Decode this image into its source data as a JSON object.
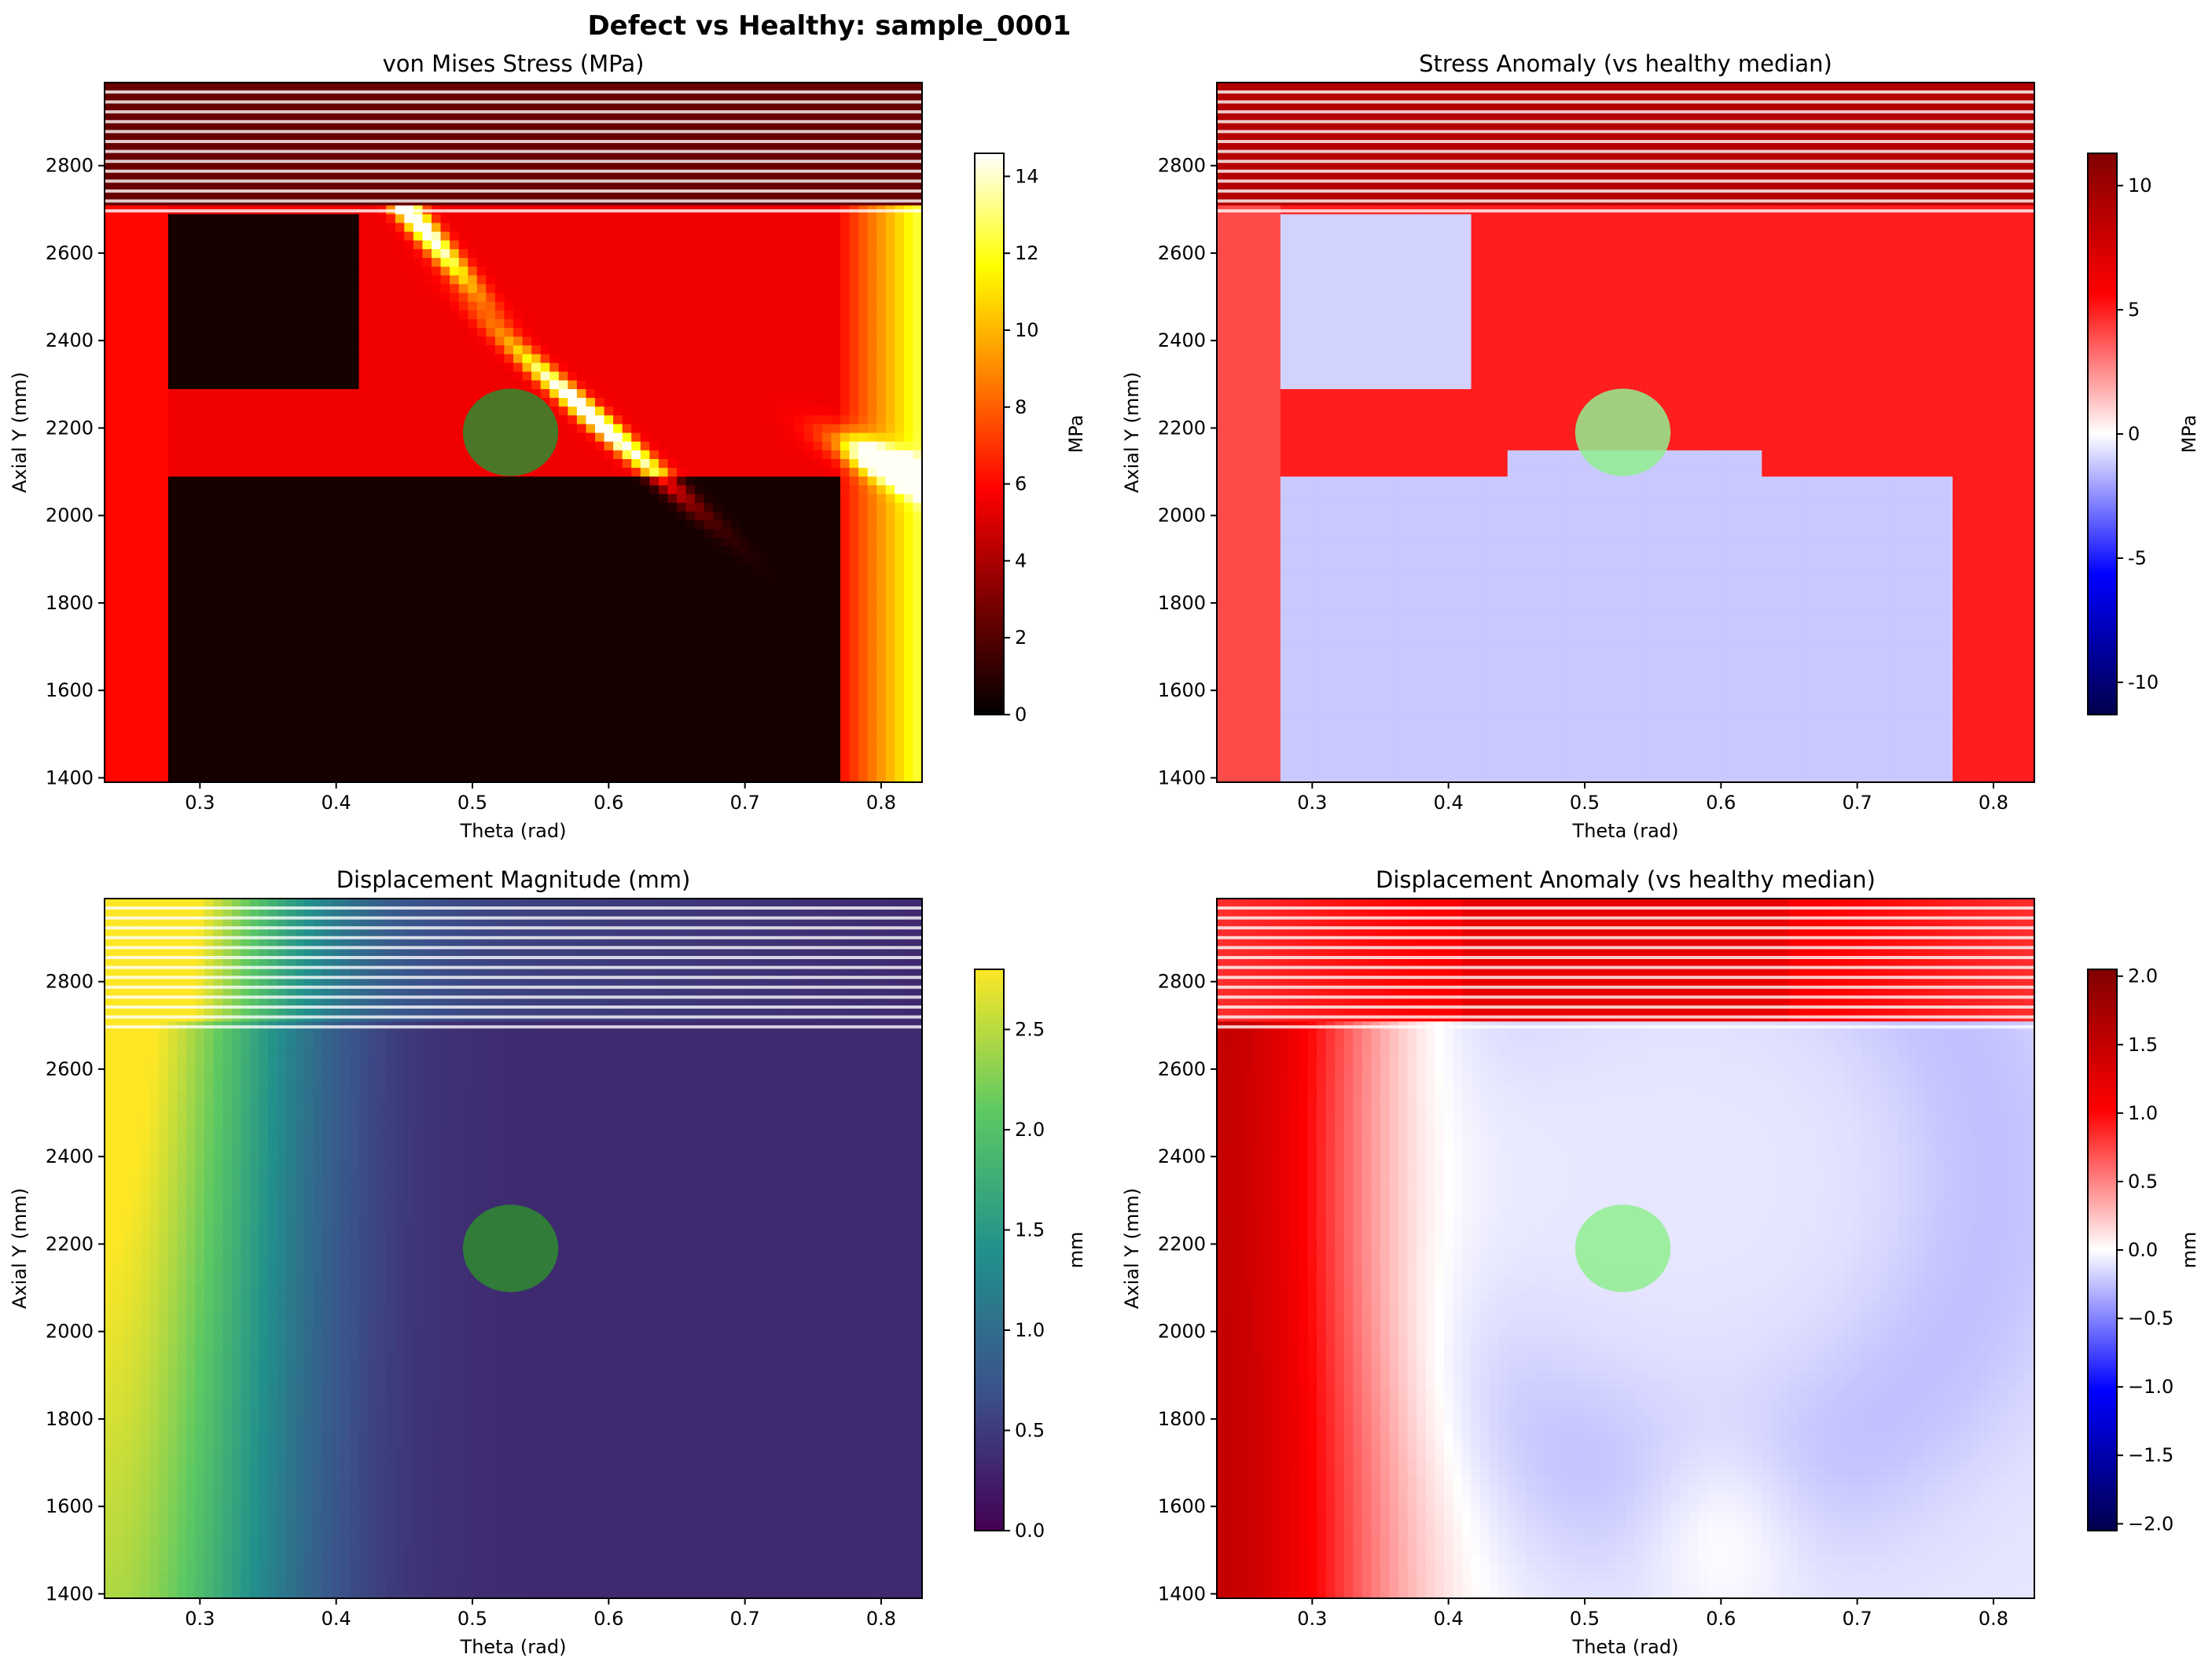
{
  "figure": {
    "suptitle": "Defect vs Healthy: sample_0001"
  },
  "chart_data": [
    {
      "id": "stress",
      "type": "heatmap",
      "title": "von Mises Stress (MPa)",
      "xlabel": "Theta (rad)",
      "ylabel": "Axial Y (mm)",
      "xlim": [
        0.23,
        0.83
      ],
      "ylim": [
        1390,
        2990
      ],
      "xticks": [
        0.3,
        0.4,
        0.5,
        0.6,
        0.7,
        0.8
      ],
      "yticks": [
        1400,
        1600,
        1800,
        2000,
        2200,
        2400,
        2600,
        2800
      ],
      "colormap": "hot",
      "colormap_stops": [
        "#000000",
        "#7a0000",
        "#ff0000",
        "#ff8000",
        "#ffff00",
        "#ffffff"
      ],
      "colorbar": {
        "label": "MPa",
        "range": [
          0,
          14.6
        ],
        "ticks": [
          0,
          2,
          4,
          6,
          8,
          10,
          12,
          14
        ]
      },
      "defect_marker": {
        "theta": 0.528,
        "y": 2190,
        "color": "#2e8b2e"
      }
    },
    {
      "id": "stress_anomaly",
      "type": "heatmap",
      "title": "Stress Anomaly (vs healthy median)",
      "xlabel": "Theta (rad)",
      "ylabel": "Axial Y (mm)",
      "xlim": [
        0.23,
        0.83
      ],
      "ylim": [
        1390,
        2990
      ],
      "xticks": [
        0.3,
        0.4,
        0.5,
        0.6,
        0.7,
        0.8
      ],
      "yticks": [
        1400,
        1600,
        1800,
        2000,
        2200,
        2400,
        2600,
        2800
      ],
      "colormap": "seismic",
      "colormap_stops": [
        "#00004c",
        "#0000ff",
        "#ffffff",
        "#ff0000",
        "#800000"
      ],
      "colorbar": {
        "label": "MPa",
        "range": [
          -11.3,
          11.3
        ],
        "ticks": [
          -10,
          -5,
          0,
          5,
          10
        ]
      },
      "defect_marker": {
        "theta": 0.528,
        "y": 2190,
        "color": "#90ee90"
      }
    },
    {
      "id": "displacement",
      "type": "heatmap",
      "title": "Displacement Magnitude (mm)",
      "xlabel": "Theta (rad)",
      "ylabel": "Axial Y (mm)",
      "xlim": [
        0.23,
        0.83
      ],
      "ylim": [
        1390,
        2990
      ],
      "xticks": [
        0.3,
        0.4,
        0.5,
        0.6,
        0.7,
        0.8
      ],
      "yticks": [
        1400,
        1600,
        1800,
        2000,
        2200,
        2400,
        2600,
        2800
      ],
      "colormap": "viridis",
      "colormap_stops": [
        "#440154",
        "#3b528b",
        "#21918c",
        "#5ec962",
        "#fde725"
      ],
      "colorbar": {
        "label": "mm",
        "range": [
          0,
          2.8
        ],
        "ticks": [
          "0.0",
          "0.5",
          "1.0",
          "1.5",
          "2.0",
          "2.5"
        ]
      },
      "defect_marker": {
        "theta": 0.528,
        "y": 2190,
        "color": "#2e8b2e"
      }
    },
    {
      "id": "displacement_anomaly",
      "type": "heatmap",
      "title": "Displacement Anomaly (vs healthy median)",
      "xlabel": "Theta (rad)",
      "ylabel": "Axial Y (mm)",
      "xlim": [
        0.23,
        0.83
      ],
      "ylim": [
        1390,
        2990
      ],
      "xticks": [
        0.3,
        0.4,
        0.5,
        0.6,
        0.7,
        0.8
      ],
      "yticks": [
        1400,
        1600,
        1800,
        2000,
        2200,
        2400,
        2600,
        2800
      ],
      "colormap": "seismic",
      "colormap_stops": [
        "#00004c",
        "#0000ff",
        "#ffffff",
        "#ff0000",
        "#800000"
      ],
      "colorbar": {
        "label": "mm",
        "range": [
          -2.05,
          2.05
        ],
        "ticks": [
          "−2.0",
          "−1.5",
          "−1.0",
          "−0.5",
          "0.0",
          "0.5",
          "1.0",
          "1.5",
          "2.0"
        ]
      },
      "defect_marker": {
        "theta": 0.528,
        "y": 2190,
        "color": "#90ee90"
      }
    }
  ]
}
